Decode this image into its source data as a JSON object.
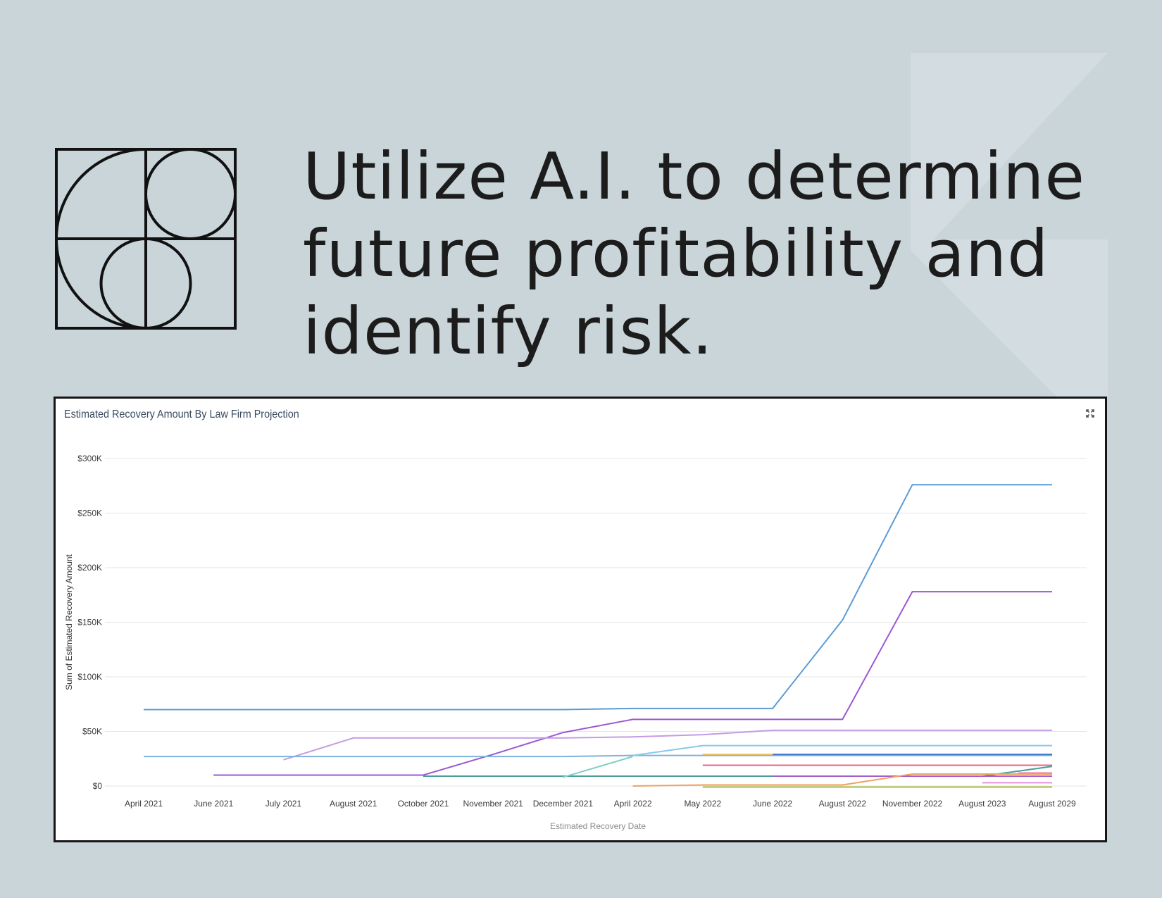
{
  "headline": {
    "lines": [
      "Utilize A.I. to determine",
      "future profitability and",
      "identify risk."
    ]
  },
  "logo": {
    "icon": "geometric-circles-logo"
  },
  "chart_card": {
    "expand_icon": "expand-icon"
  },
  "chart_data": {
    "type": "line",
    "title": "Estimated Recovery Amount By Law Firm Projection",
    "xlabel": "Estimated Recovery Date",
    "ylabel": "Sum of Estimated Recovery Amount",
    "categories": [
      "April 2021",
      "June 2021",
      "July 2021",
      "August 2021",
      "October 2021",
      "November 2021",
      "December 2021",
      "April 2022",
      "May 2022",
      "June 2022",
      "August 2022",
      "November 2022",
      "August 2023",
      "August 2029"
    ],
    "y_ticks": [
      "$0",
      "$50K",
      "$100K",
      "$150K",
      "$200K",
      "$250K",
      "$300K"
    ],
    "ylim": [
      0,
      300000
    ],
    "grid": true,
    "legend": "none",
    "series": [
      {
        "color": "#5b9bd5",
        "values": [
          70000,
          70000,
          70000,
          70000,
          70000,
          70000,
          70000,
          71000,
          71000,
          71000,
          152000,
          276000,
          276000,
          276000
        ]
      },
      {
        "color": "#9b59d0",
        "values": [
          null,
          10000,
          10000,
          10000,
          10000,
          29000,
          49000,
          61000,
          61000,
          61000,
          61000,
          178000,
          178000,
          178000
        ]
      },
      {
        "color": "#c39be6",
        "values": [
          null,
          null,
          24000,
          44000,
          44000,
          44000,
          44000,
          45000,
          47000,
          51000,
          51000,
          51000,
          51000,
          51000
        ]
      },
      {
        "color": "#7fb2dc",
        "values": [
          27000,
          27000,
          27000,
          27000,
          27000,
          27000,
          27000,
          28000,
          28000,
          28000,
          28000,
          28000,
          28000,
          28000
        ]
      },
      {
        "color": "#88c9e8",
        "values": [
          null,
          null,
          null,
          null,
          null,
          null,
          null,
          28000,
          37000,
          37000,
          37000,
          37000,
          37000,
          37000
        ]
      },
      {
        "color": "#4a9e9a",
        "values": [
          null,
          null,
          null,
          null,
          9000,
          9000,
          9000,
          9000,
          9000,
          9000,
          9000,
          9000,
          9000,
          18000
        ]
      },
      {
        "color": "#7fcfc7",
        "values": [
          null,
          null,
          null,
          null,
          null,
          null,
          8000,
          27000,
          null,
          null,
          null,
          null,
          null,
          null
        ]
      },
      {
        "color": "#3a78c9",
        "values": [
          null,
          null,
          null,
          null,
          null,
          null,
          null,
          null,
          null,
          29000,
          29000,
          29000,
          29000,
          29000
        ]
      },
      {
        "color": "#e8c060",
        "values": [
          null,
          null,
          null,
          null,
          null,
          null,
          null,
          null,
          29000,
          29000,
          null,
          null,
          null,
          null
        ]
      },
      {
        "color": "#e06a88",
        "values": [
          null,
          null,
          null,
          null,
          null,
          null,
          null,
          null,
          19000,
          19000,
          19000,
          19000,
          19000,
          19000
        ]
      },
      {
        "color": "#a35ec9",
        "values": [
          null,
          null,
          null,
          null,
          null,
          null,
          null,
          null,
          null,
          9000,
          9000,
          9000,
          9000,
          9000
        ]
      },
      {
        "color": "#f0a060",
        "values": [
          null,
          null,
          null,
          null,
          null,
          null,
          null,
          0,
          1000,
          1000,
          1000,
          11000,
          11000,
          11000
        ]
      },
      {
        "color": "#f08aa8",
        "values": [
          null,
          null,
          null,
          null,
          null,
          null,
          null,
          null,
          null,
          null,
          null,
          null,
          null,
          12000
        ]
      },
      {
        "color": "#e58fe0",
        "values": [
          null,
          null,
          null,
          null,
          null,
          null,
          null,
          null,
          null,
          null,
          null,
          null,
          3000,
          3000
        ]
      },
      {
        "color": "#a8c040",
        "values": [
          null,
          null,
          null,
          null,
          null,
          null,
          null,
          null,
          -1000,
          -1000,
          -1000,
          -1000,
          -1000,
          -1000
        ]
      }
    ]
  }
}
